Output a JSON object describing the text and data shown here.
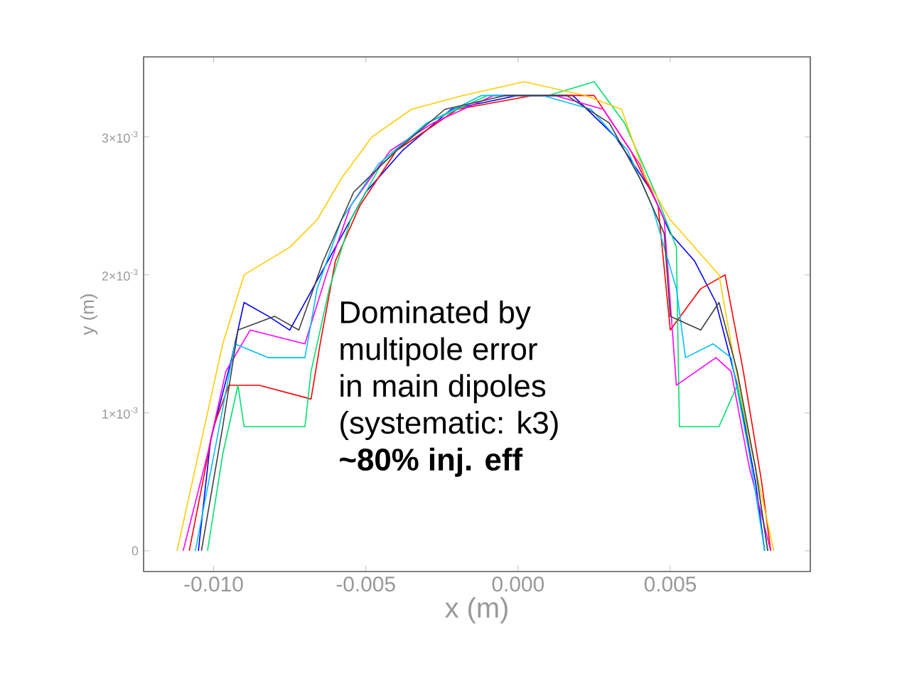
{
  "chart_data": {
    "type": "line",
    "xlabel": "x  (m)",
    "ylabel": "y  (m)",
    "xlim": [
      -0.0123,
      0.0096
    ],
    "ylim": [
      -0.00015,
      0.00358
    ],
    "xticks": [
      {
        "value": -0.01,
        "label": "-0.010"
      },
      {
        "value": -0.005,
        "label": "-0.005"
      },
      {
        "value": 0,
        "label": "0.000"
      },
      {
        "value": 0.005,
        "label": "0.005"
      }
    ],
    "yticks": [
      0,
      {
        "value": 0.001,
        "label": "1×10$^{-3}$"
      },
      {
        "value": 0.002,
        "label": "2×10$^{-3}$"
      },
      {
        "value": 0.003,
        "label": "3×10$^{-3}$"
      }
    ],
    "marker": "none",
    "line_style": "solid",
    "annotations": [
      "Dominated by",
      "multipole error",
      "in main dipoles",
      "(systematic: k3)",
      "**~80% inj. eff**"
    ],
    "series": [
      {
        "color": "#0000ff",
        "x": [
          -0.0105,
          -0.0101,
          -0.0094,
          -0.009,
          -0.0082,
          -0.0075,
          -0.006,
          -0.005,
          -0.0038,
          -0.0022,
          0.0,
          0.0018,
          0.0032,
          0.0044,
          0.005,
          0.0058,
          0.0065,
          0.0072,
          0.0078,
          0.0081
        ],
        "values": [
          0,
          0.0008,
          0.0014,
          0.0018,
          0.0017,
          0.0016,
          0.0022,
          0.0026,
          0.0029,
          0.0032,
          0.0033,
          0.0033,
          0.003,
          0.0026,
          0.0023,
          0.0021,
          0.0018,
          0.0012,
          0.0005,
          0
        ]
      },
      {
        "color": "#ff0000",
        "x": [
          -0.0108,
          -0.01,
          -0.0095,
          -0.0085,
          -0.0068,
          -0.0065,
          -0.006,
          -0.0052,
          -0.004,
          -0.002,
          0.0005,
          0.0025,
          0.0037,
          0.0046,
          0.005,
          0.006,
          0.0068,
          0.0074,
          0.008,
          0.0083
        ],
        "values": [
          0,
          0.0009,
          0.0012,
          0.0012,
          0.0011,
          0.0015,
          0.0021,
          0.0025,
          0.0029,
          0.0032,
          0.0033,
          0.0033,
          0.0029,
          0.0025,
          0.0016,
          0.0019,
          0.002,
          0.0013,
          0.0005,
          0
        ]
      },
      {
        "color": "#00e070",
        "x": [
          -0.0102,
          -0.0097,
          -0.0092,
          -0.009,
          -0.007,
          -0.0068,
          -0.0062,
          -0.0055,
          -0.0045,
          -0.003,
          -0.001,
          0.001,
          0.0025,
          0.0035,
          0.0045,
          0.0052,
          0.0053,
          0.0066,
          0.0072,
          0.0078,
          0.0082
        ],
        "values": [
          0,
          0.0007,
          0.0012,
          0.0009,
          0.0009,
          0.0013,
          0.0019,
          0.0024,
          0.0028,
          0.0031,
          0.0033,
          0.0033,
          0.0034,
          0.0031,
          0.0026,
          0.0022,
          0.0009,
          0.0009,
          0.0012,
          0.0006,
          0
        ]
      },
      {
        "color": "#ff00ff",
        "x": [
          -0.011,
          -0.0102,
          -0.0096,
          -0.0088,
          -0.007,
          -0.0063,
          -0.0055,
          -0.0042,
          -0.0028,
          -0.0008,
          0.0012,
          0.0028,
          0.004,
          0.0048,
          0.0052,
          0.0065,
          0.007,
          0.0076,
          0.0083
        ],
        "values": [
          0,
          0.0007,
          0.0013,
          0.0016,
          0.0015,
          0.002,
          0.0025,
          0.0029,
          0.0031,
          0.0033,
          0.0033,
          0.0032,
          0.0028,
          0.0024,
          0.0012,
          0.0014,
          0.0013,
          0.0006,
          0
        ]
      },
      {
        "color": "#ffcc00",
        "x": [
          -0.0112,
          -0.0104,
          -0.0097,
          -0.009,
          -0.0075,
          -0.0066,
          -0.0058,
          -0.0048,
          -0.0035,
          -0.0018,
          0.0002,
          0.0022,
          0.0034,
          0.0042,
          0.005,
          0.0058,
          0.0066,
          0.007,
          0.0076,
          0.0084
        ],
        "values": [
          0,
          0.0008,
          0.0015,
          0.002,
          0.0022,
          0.0024,
          0.0027,
          0.003,
          0.0032,
          0.0033,
          0.0034,
          0.0033,
          0.0032,
          0.0027,
          0.0024,
          0.0022,
          0.002,
          0.0015,
          0.0008,
          0
        ]
      },
      {
        "color": "#00bfff",
        "x": [
          -0.0106,
          -0.0099,
          -0.0093,
          -0.0082,
          -0.007,
          -0.0066,
          -0.0058,
          -0.0046,
          -0.003,
          -0.0012,
          0.0008,
          0.0024,
          0.0036,
          0.0044,
          0.0052,
          0.0055,
          0.0064,
          0.007,
          0.0076,
          0.0081
        ],
        "values": [
          0,
          0.0008,
          0.0015,
          0.0014,
          0.0014,
          0.0019,
          0.0024,
          0.0028,
          0.0031,
          0.0033,
          0.0033,
          0.0032,
          0.0029,
          0.0025,
          0.0019,
          0.0014,
          0.0015,
          0.0014,
          0.0007,
          0
        ]
      },
      {
        "color": "#404040",
        "x": [
          -0.0104,
          -0.0097,
          -0.0092,
          -0.008,
          -0.0072,
          -0.0064,
          -0.0054,
          -0.004,
          -0.0024,
          -0.0004,
          0.0016,
          0.003,
          0.004,
          0.0048,
          0.005,
          0.006,
          0.0066,
          0.0072,
          0.0078,
          0.0082
        ],
        "values": [
          0,
          0.0009,
          0.0016,
          0.0017,
          0.0016,
          0.0021,
          0.0026,
          0.0029,
          0.0032,
          0.0033,
          0.0033,
          0.0031,
          0.0027,
          0.0023,
          0.0017,
          0.0016,
          0.0018,
          0.0013,
          0.0006,
          0
        ]
      }
    ]
  }
}
